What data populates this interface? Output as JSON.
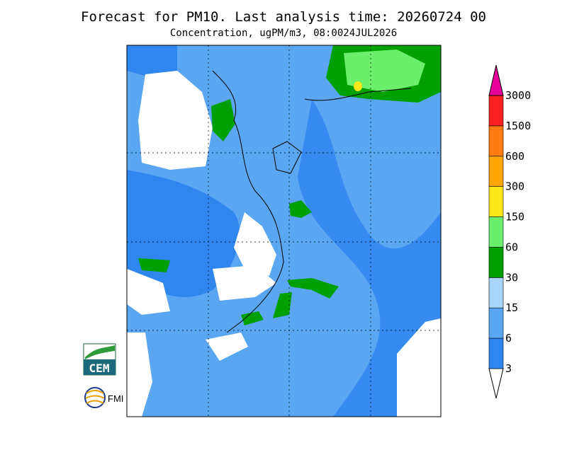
{
  "title": "Forecast for PM10. Last analysis time: 20260724 00",
  "subtitle": "Concentration, ugPM/m3, 08:0024JUL2026",
  "legend": {
    "levels": [
      3,
      6,
      15,
      30,
      60,
      150,
      300,
      600,
      1500,
      3000
    ],
    "colors": [
      "#ffffff",
      "#2f86ee",
      "#5aa6f2",
      "#a9d6fa",
      "#00a000",
      "#6cef6c",
      "#ffe81a",
      "#ffa500",
      "#ff7a10",
      "#ff2020",
      "#e8009a"
    ]
  },
  "logos": [
    "CEM",
    "FMI"
  ]
}
